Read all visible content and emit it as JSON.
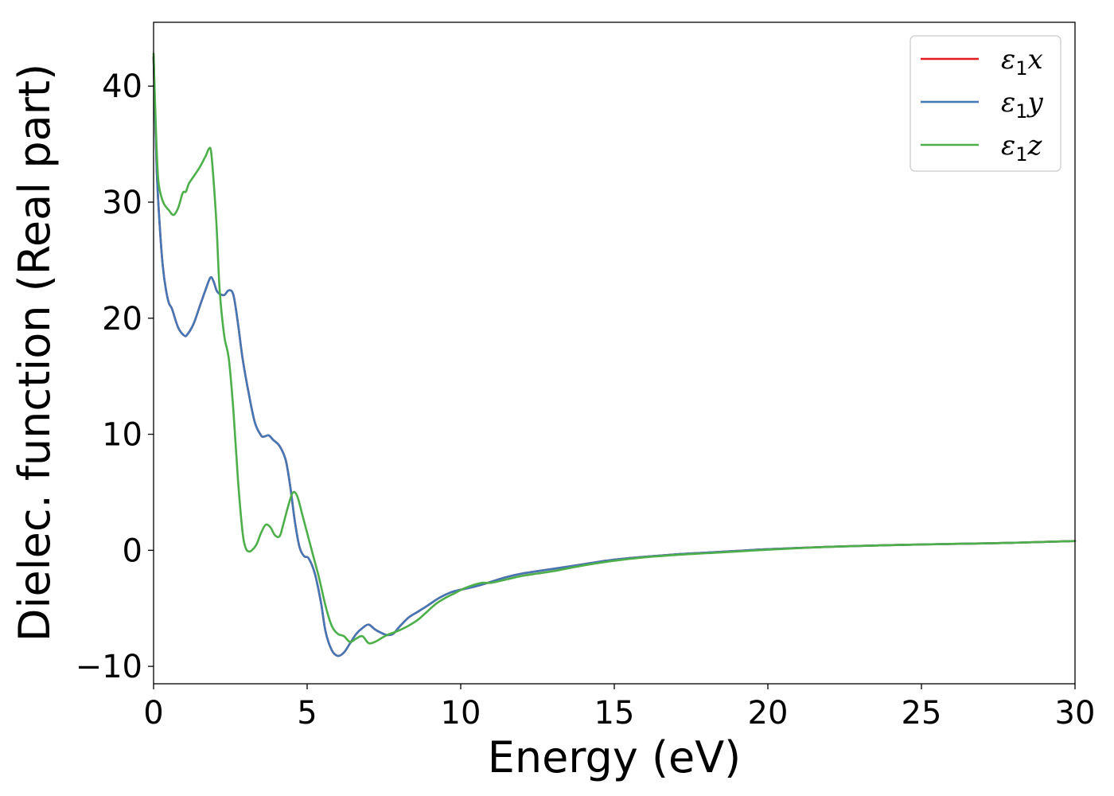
{
  "chart_data": {
    "type": "line",
    "title": "",
    "xlabel": "Energy (eV)",
    "ylabel": "Dielec. function (Real part)",
    "xlim": [
      0,
      30
    ],
    "ylim": [
      -11.5,
      45.5
    ],
    "xticks": [
      0,
      5,
      10,
      15,
      20,
      25,
      30
    ],
    "xtick_labels": [
      "0",
      "5",
      "10",
      "15",
      "20",
      "25",
      "30"
    ],
    "yticks": [
      -10,
      0,
      10,
      20,
      30,
      40
    ],
    "ytick_labels": [
      "−10",
      "0",
      "10",
      "20",
      "30",
      "40"
    ],
    "grid": false,
    "legend_position": "top-right",
    "series": [
      {
        "name": "ε1x",
        "legend_main": "ε",
        "legend_sub": "1",
        "legend_var": "x",
        "color": "#e41a1c",
        "x": [
          0,
          0.1,
          0.2,
          0.3,
          0.4,
          0.5,
          0.6,
          0.8,
          1.0,
          1.1,
          1.3,
          1.5,
          1.7,
          1.85,
          1.95,
          2.05,
          2.15,
          2.3,
          2.45,
          2.6,
          2.75,
          2.9,
          3.1,
          3.3,
          3.5,
          3.6,
          3.75,
          3.9,
          4.1,
          4.3,
          4.45,
          4.6,
          4.75,
          4.9,
          5.05,
          5.25,
          5.45,
          5.6,
          5.8,
          6.0,
          6.2,
          6.4,
          6.6,
          6.8,
          7.0,
          7.2,
          7.4,
          7.6,
          7.8,
          8.0,
          8.3,
          8.6,
          8.9,
          9.3,
          9.7,
          10.0,
          10.5,
          11.0,
          11.5,
          12.0,
          12.5,
          13.0,
          14.0,
          15.0,
          16.0,
          17.0,
          18.0,
          19.0,
          20.0,
          22.0,
          24.0,
          26.0,
          28.0,
          30.0
        ],
        "y": [
          42.5,
          33.0,
          28.0,
          24.5,
          22.5,
          21.3,
          20.8,
          19.2,
          18.5,
          18.6,
          19.5,
          21.0,
          22.5,
          23.5,
          23.2,
          22.4,
          22.1,
          22.0,
          22.4,
          22.0,
          19.5,
          16.5,
          13.5,
          11.0,
          9.9,
          9.8,
          9.9,
          9.5,
          9.0,
          7.8,
          5.5,
          2.5,
          0.3,
          -0.5,
          -0.7,
          -2.0,
          -4.5,
          -7.0,
          -8.6,
          -9.1,
          -8.8,
          -8.0,
          -7.2,
          -6.7,
          -6.4,
          -6.8,
          -7.1,
          -7.3,
          -7.2,
          -6.6,
          -5.8,
          -5.3,
          -4.8,
          -4.1,
          -3.6,
          -3.4,
          -3.1,
          -2.7,
          -2.3,
          -2.0,
          -1.8,
          -1.6,
          -1.2,
          -0.8,
          -0.55,
          -0.35,
          -0.2,
          -0.05,
          0.1,
          0.3,
          0.45,
          0.55,
          0.65,
          0.8
        ]
      },
      {
        "name": "ε1y",
        "legend_main": "ε",
        "legend_sub": "1",
        "legend_var": "y",
        "color": "#4477b5",
        "x": [
          0,
          0.1,
          0.2,
          0.3,
          0.4,
          0.5,
          0.6,
          0.8,
          1.0,
          1.1,
          1.3,
          1.5,
          1.7,
          1.85,
          1.95,
          2.05,
          2.15,
          2.3,
          2.45,
          2.6,
          2.75,
          2.9,
          3.1,
          3.3,
          3.5,
          3.6,
          3.75,
          3.9,
          4.1,
          4.3,
          4.45,
          4.6,
          4.75,
          4.9,
          5.05,
          5.25,
          5.45,
          5.6,
          5.8,
          6.0,
          6.2,
          6.4,
          6.6,
          6.8,
          7.0,
          7.2,
          7.4,
          7.6,
          7.8,
          8.0,
          8.3,
          8.6,
          8.9,
          9.3,
          9.7,
          10.0,
          10.5,
          11.0,
          11.5,
          12.0,
          12.5,
          13.0,
          14.0,
          15.0,
          16.0,
          17.0,
          18.0,
          19.0,
          20.0,
          22.0,
          24.0,
          26.0,
          28.0,
          30.0
        ],
        "y": [
          42.5,
          33.0,
          28.0,
          24.5,
          22.5,
          21.3,
          20.8,
          19.2,
          18.5,
          18.6,
          19.5,
          21.0,
          22.5,
          23.5,
          23.2,
          22.4,
          22.1,
          22.0,
          22.4,
          22.0,
          19.5,
          16.5,
          13.5,
          11.0,
          9.9,
          9.8,
          9.9,
          9.5,
          9.0,
          7.8,
          5.5,
          2.5,
          0.3,
          -0.5,
          -0.7,
          -2.0,
          -4.5,
          -7.0,
          -8.6,
          -9.1,
          -8.8,
          -8.0,
          -7.2,
          -6.7,
          -6.4,
          -6.8,
          -7.1,
          -7.3,
          -7.2,
          -6.6,
          -5.8,
          -5.3,
          -4.8,
          -4.1,
          -3.6,
          -3.4,
          -3.1,
          -2.7,
          -2.3,
          -2.0,
          -1.8,
          -1.6,
          -1.2,
          -0.8,
          -0.55,
          -0.35,
          -0.2,
          -0.05,
          0.1,
          0.3,
          0.45,
          0.55,
          0.65,
          0.8
        ]
      },
      {
        "name": "ε1z",
        "legend_main": "ε",
        "legend_sub": "1",
        "legend_var": "z",
        "color": "#4daf4a",
        "x": [
          0,
          0.08,
          0.15,
          0.25,
          0.35,
          0.5,
          0.65,
          0.8,
          0.95,
          1.05,
          1.15,
          1.3,
          1.5,
          1.7,
          1.8,
          1.87,
          1.95,
          2.05,
          2.15,
          2.3,
          2.45,
          2.6,
          2.75,
          2.9,
          3.0,
          3.1,
          3.2,
          3.35,
          3.5,
          3.65,
          3.8,
          3.95,
          4.1,
          4.2,
          4.35,
          4.5,
          4.6,
          4.7,
          4.85,
          5.0,
          5.2,
          5.4,
          5.6,
          5.8,
          6.0,
          6.2,
          6.4,
          6.6,
          6.8,
          7.0,
          7.2,
          7.4,
          7.6,
          7.8,
          8.0,
          8.3,
          8.6,
          8.9,
          9.2,
          9.5,
          9.8,
          10.1,
          10.4,
          10.7,
          11.0,
          11.5,
          12.0,
          12.5,
          13.0,
          14.0,
          15.0,
          16.0,
          17.0,
          18.0,
          19.0,
          20.0,
          22.0,
          24.0,
          26.0,
          28.0,
          30.0
        ],
        "y": [
          42.8,
          36.0,
          32.0,
          30.5,
          29.8,
          29.3,
          28.9,
          29.5,
          30.8,
          30.9,
          31.6,
          32.2,
          33.0,
          34.0,
          34.6,
          34.4,
          32.0,
          28.0,
          22.5,
          18.5,
          16.5,
          12.0,
          6.0,
          1.5,
          0.2,
          -0.1,
          0.0,
          0.5,
          1.5,
          2.2,
          2.0,
          1.3,
          1.2,
          2.0,
          3.5,
          4.8,
          5.0,
          4.5,
          3.0,
          1.5,
          -0.5,
          -2.5,
          -4.8,
          -6.5,
          -7.2,
          -7.4,
          -7.9,
          -7.6,
          -7.4,
          -8.0,
          -7.9,
          -7.6,
          -7.3,
          -7.1,
          -6.9,
          -6.5,
          -6.0,
          -5.3,
          -4.6,
          -4.1,
          -3.7,
          -3.3,
          -3.0,
          -2.8,
          -2.8,
          -2.5,
          -2.2,
          -2.0,
          -1.8,
          -1.3,
          -0.9,
          -0.6,
          -0.4,
          -0.25,
          -0.1,
          0.05,
          0.3,
          0.45,
          0.55,
          0.65,
          0.8
        ]
      }
    ]
  }
}
